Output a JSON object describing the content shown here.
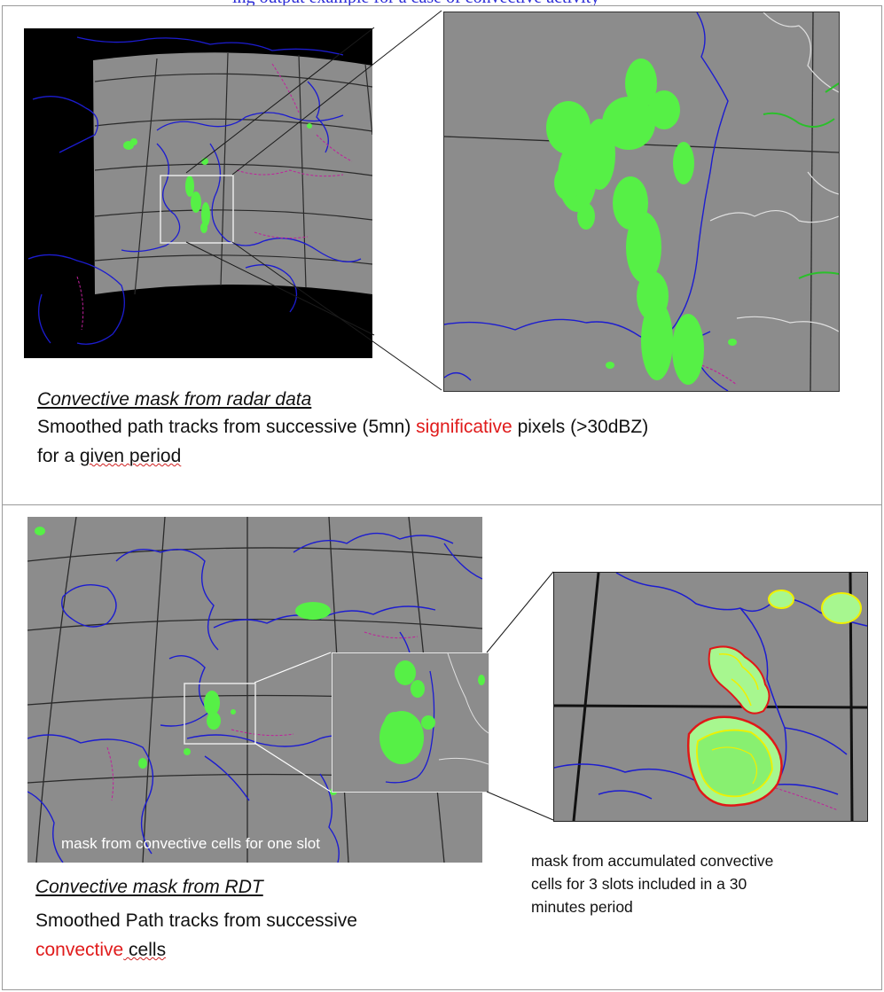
{
  "header": {
    "text": "ing output example for a case of convective activity"
  },
  "top_panel": {
    "caption_title": "Convective mask from radar data",
    "caption_line1_a": "Smoothed path tracks from successive (5mn) ",
    "caption_line1_red": "significative",
    "caption_line1_b": " pixels (>30dBZ)",
    "caption_line2_a": "for a ",
    "caption_line2_wavy": "given period",
    "caption_line2_b": ""
  },
  "bottom_panel": {
    "overlay_label": "mask from convective cells for one slot",
    "caption_title": "Convective mask from RDT",
    "caption_line1": "Smoothed Path tracks from successive",
    "caption_line2_red": "convective",
    "caption_line2_b": " cells",
    "note_line1": "mask from accumulated convective",
    "note_line2": "cells for 3 slots included in a 30",
    "note_line3": "minutes period"
  },
  "colors": {
    "map_bg": "#8c8c8c",
    "space": "#000000",
    "coast": "#1c1cd0",
    "border": "#c0209c",
    "mask": "#56f046",
    "accumulated_outline": "#e01818",
    "accumulated_inner": "#f0f000",
    "accent_red": "#e01b1b"
  }
}
